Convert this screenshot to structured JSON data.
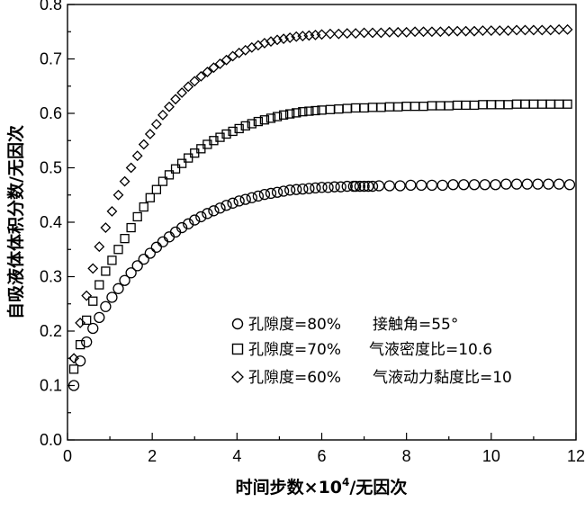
{
  "chart_data": {
    "type": "scatter",
    "xlabel_main": "时间步数×10",
    "xlabel_sup": "4",
    "xlabel_tail": "/无因次",
    "ylabel": "自吸液体体积分数/无因次",
    "xlim": [
      0,
      12
    ],
    "ylim": [
      0,
      0.8
    ],
    "xticks": [
      "0",
      "2",
      "4",
      "6",
      "8",
      "10",
      "12"
    ],
    "yticks": [
      "0.0",
      "0.1",
      "0.2",
      "0.3",
      "0.4",
      "0.5",
      "0.6",
      "0.7",
      "0.8"
    ],
    "grid": false,
    "legend_position": "bottom-right",
    "legend_notes": [
      "接触角=55°",
      "气液密度比=10.6",
      "气液动力黏度比=10"
    ],
    "series": [
      {
        "name": "孔隙度=80%",
        "marker": "circle",
        "x": [
          0.15,
          0.3,
          0.45,
          0.6,
          0.75,
          0.9,
          1.05,
          1.2,
          1.35,
          1.5,
          1.65,
          1.8,
          1.95,
          2.1,
          2.25,
          2.4,
          2.55,
          2.7,
          2.85,
          3.0,
          3.15,
          3.3,
          3.45,
          3.6,
          3.75,
          3.9,
          4.05,
          4.2,
          4.35,
          4.5,
          4.65,
          4.8,
          4.95,
          5.1,
          5.25,
          5.4,
          5.55,
          5.7,
          5.85,
          6.0,
          6.15,
          6.3,
          6.45,
          6.6,
          6.75,
          6.8,
          6.9,
          7.0,
          7.1,
          7.2,
          7.35,
          7.6,
          7.85,
          8.1,
          8.35,
          8.6,
          8.85,
          9.1,
          9.35,
          9.6,
          9.85,
          10.1,
          10.35,
          10.6,
          10.85,
          11.1,
          11.35,
          11.6,
          11.85
        ],
        "y": [
          0.1,
          0.145,
          0.18,
          0.205,
          0.225,
          0.245,
          0.262,
          0.278,
          0.293,
          0.307,
          0.32,
          0.332,
          0.343,
          0.354,
          0.364,
          0.373,
          0.382,
          0.39,
          0.397,
          0.404,
          0.41,
          0.416,
          0.421,
          0.426,
          0.431,
          0.435,
          0.439,
          0.442,
          0.445,
          0.448,
          0.451,
          0.453,
          0.455,
          0.457,
          0.459,
          0.46,
          0.461,
          0.462,
          0.463,
          0.464,
          0.464,
          0.465,
          0.465,
          0.466,
          0.466,
          0.466,
          0.466,
          0.466,
          0.466,
          0.466,
          0.467,
          0.467,
          0.467,
          0.468,
          0.468,
          0.468,
          0.468,
          0.469,
          0.469,
          0.469,
          0.469,
          0.469,
          0.47,
          0.47,
          0.47,
          0.47,
          0.47,
          0.47,
          0.469
        ]
      },
      {
        "name": "孔隙度=70%",
        "marker": "square",
        "x": [
          0.15,
          0.3,
          0.45,
          0.6,
          0.75,
          0.9,
          1.05,
          1.2,
          1.35,
          1.5,
          1.65,
          1.8,
          1.95,
          2.1,
          2.25,
          2.4,
          2.55,
          2.7,
          2.85,
          3.0,
          3.15,
          3.3,
          3.45,
          3.6,
          3.75,
          3.9,
          4.05,
          4.2,
          4.35,
          4.5,
          4.65,
          4.8,
          4.95,
          5.1,
          5.25,
          5.4,
          5.55,
          5.7,
          5.85,
          6.0,
          6.2,
          6.4,
          6.6,
          6.8,
          7.0,
          7.2,
          7.4,
          7.6,
          7.8,
          8.0,
          8.2,
          8.4,
          8.6,
          8.8,
          9.0,
          9.2,
          9.4,
          9.6,
          9.8,
          10.0,
          10.2,
          10.4,
          10.6,
          10.8,
          11.0,
          11.2,
          11.4,
          11.6,
          11.8
        ],
        "y": [
          0.13,
          0.175,
          0.22,
          0.255,
          0.285,
          0.31,
          0.33,
          0.35,
          0.37,
          0.39,
          0.41,
          0.428,
          0.445,
          0.46,
          0.475,
          0.487,
          0.498,
          0.508,
          0.518,
          0.527,
          0.535,
          0.543,
          0.55,
          0.556,
          0.562,
          0.567,
          0.572,
          0.577,
          0.581,
          0.585,
          0.588,
          0.591,
          0.594,
          0.597,
          0.599,
          0.601,
          0.603,
          0.604,
          0.605,
          0.606,
          0.607,
          0.608,
          0.609,
          0.61,
          0.61,
          0.611,
          0.611,
          0.612,
          0.612,
          0.613,
          0.613,
          0.613,
          0.614,
          0.614,
          0.614,
          0.615,
          0.615,
          0.615,
          0.616,
          0.616,
          0.616,
          0.616,
          0.617,
          0.617,
          0.617,
          0.617,
          0.617,
          0.617,
          0.617
        ]
      },
      {
        "name": "孔隙度=60%",
        "marker": "diamond",
        "x": [
          0.15,
          0.3,
          0.45,
          0.6,
          0.75,
          0.9,
          1.05,
          1.2,
          1.35,
          1.5,
          1.65,
          1.8,
          1.95,
          2.1,
          2.25,
          2.4,
          2.55,
          2.7,
          2.85,
          3.0,
          3.15,
          3.3,
          3.45,
          3.6,
          3.75,
          3.9,
          4.05,
          4.2,
          4.35,
          4.5,
          4.65,
          4.8,
          4.95,
          5.1,
          5.25,
          5.4,
          5.55,
          5.7,
          5.85,
          6.0,
          6.2,
          6.4,
          6.6,
          6.8,
          7.0,
          7.2,
          7.4,
          7.6,
          7.8,
          8.0,
          8.2,
          8.4,
          8.6,
          8.8,
          9.0,
          9.2,
          9.4,
          9.6,
          9.8,
          10.0,
          10.2,
          10.4,
          10.6,
          10.8,
          11.0,
          11.2,
          11.4,
          11.6,
          11.8
        ],
        "y": [
          0.15,
          0.215,
          0.265,
          0.315,
          0.355,
          0.39,
          0.42,
          0.45,
          0.475,
          0.5,
          0.522,
          0.543,
          0.562,
          0.58,
          0.597,
          0.612,
          0.626,
          0.638,
          0.649,
          0.659,
          0.668,
          0.676,
          0.684,
          0.691,
          0.698,
          0.705,
          0.711,
          0.716,
          0.721,
          0.725,
          0.729,
          0.732,
          0.735,
          0.737,
          0.739,
          0.741,
          0.742,
          0.743,
          0.744,
          0.745,
          0.746,
          0.746,
          0.747,
          0.747,
          0.748,
          0.748,
          0.748,
          0.749,
          0.749,
          0.749,
          0.75,
          0.75,
          0.75,
          0.75,
          0.751,
          0.751,
          0.751,
          0.751,
          0.752,
          0.752,
          0.752,
          0.752,
          0.753,
          0.753,
          0.753,
          0.753,
          0.753,
          0.754,
          0.754
        ]
      }
    ]
  }
}
